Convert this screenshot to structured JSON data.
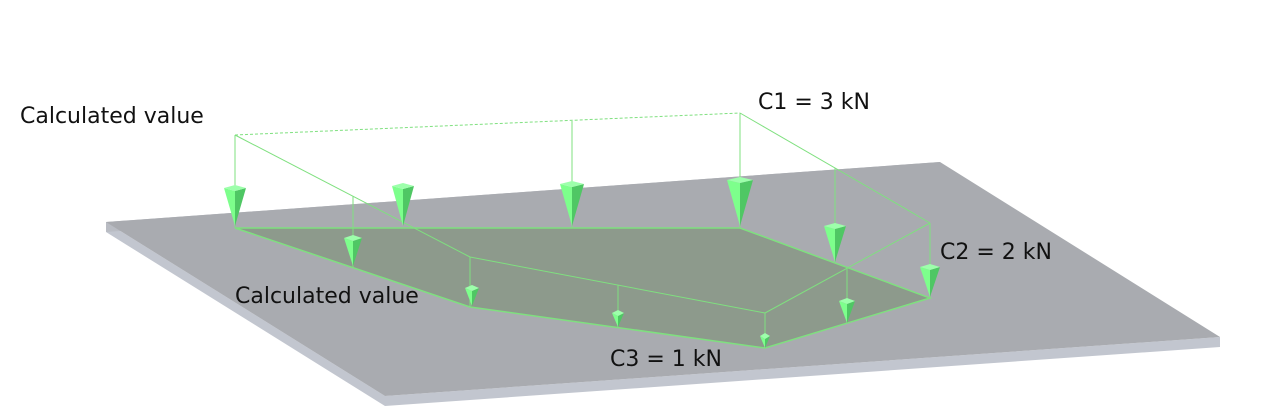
{
  "labels": {
    "calculated_top": "Calculated value",
    "calculated_left": "Calculated value",
    "c1": "C1 = 3 kN",
    "c2": "C2 = 2 kN",
    "c3": "C3 = 1 kN"
  },
  "colors": {
    "plate_top": "#a9abb0",
    "plate_edge": "#c2c6cf",
    "load_area_fill": "#8d9a8c",
    "load_line": "#7fe07f",
    "arrow_light": "#7dff8c",
    "arrow_dark": "#4fc764",
    "text": "#111111"
  }
}
